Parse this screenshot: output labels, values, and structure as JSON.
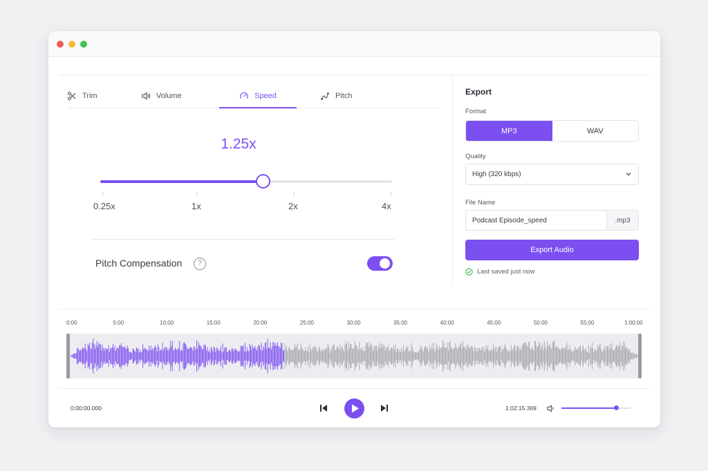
{
  "tabs": [
    {
      "label": "Trim",
      "icon": "scissors-icon"
    },
    {
      "label": "Volume",
      "icon": "speaker-icon"
    },
    {
      "label": "Speed",
      "icon": "speedometer-icon",
      "active": true
    },
    {
      "label": "Pitch",
      "icon": "pitch-icon"
    }
  ],
  "speed": {
    "value_label": "1.25x",
    "slider_fraction": 0.6,
    "ticks": [
      "0.25x",
      "1x",
      "2x",
      "4x"
    ]
  },
  "pitch_compensation": {
    "label": "Pitch Compensation",
    "help": "?",
    "enabled": true
  },
  "export": {
    "title": "Export",
    "format_label": "Format",
    "formats": [
      {
        "label": "MP3",
        "active": true
      },
      {
        "label": "WAV",
        "active": false
      }
    ],
    "quality_label": "Quality",
    "quality_value": "High (320 kbps)",
    "filename_label": "File Name",
    "filename_value": "Podcast Episode_speed",
    "extension": ".mp3",
    "button_label": "Export Audio",
    "status": "Last saved just now"
  },
  "timeline": {
    "ruler": [
      "0:00",
      "5:00",
      "10:00",
      "15:00",
      "20:00",
      "25:00",
      "30:00",
      "35:00",
      "40:00",
      "45:00",
      "50:00",
      "55:00",
      "1:00:00"
    ],
    "played_fraction": 0.375
  },
  "transport": {
    "current_time": "0:00:00.000",
    "duration": "1:02:15.369",
    "volume_fraction": 0.78
  },
  "colors": {
    "accent": "#7b4ff0",
    "played_wave": "#7b4ff0",
    "unplayed_wave": "#a6a6ae",
    "success": "#3cb55a"
  }
}
